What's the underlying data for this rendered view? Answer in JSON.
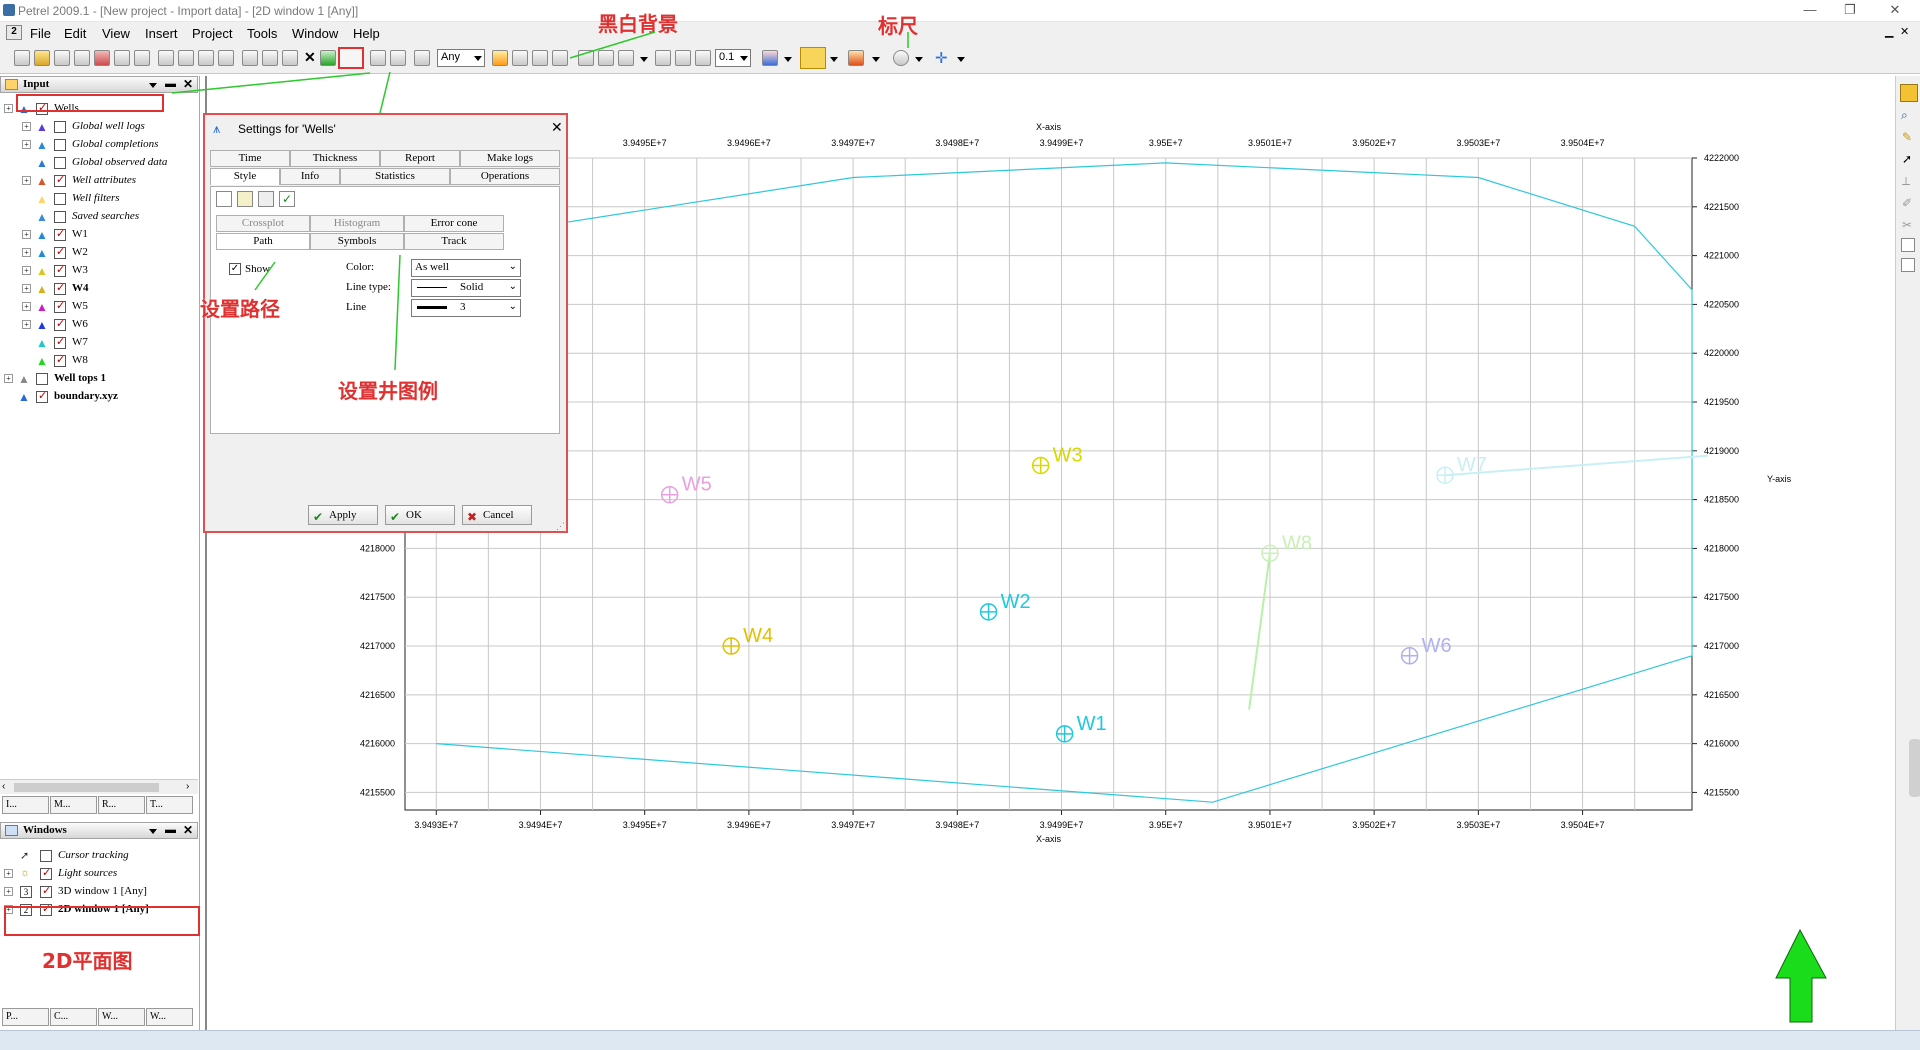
{
  "titlebar": {
    "title": "Petrel 2009.1 - [New project - Import data] - [2D window 1 [Any]]",
    "min_glyph": "—",
    "restore_glyph": "❐",
    "close_glyph": "✕"
  },
  "menubar": {
    "items": [
      "File",
      "Edit",
      "View",
      "Insert",
      "Project",
      "Tools",
      "Window",
      "Help"
    ]
  },
  "toolbar": {
    "combo_any": "Any",
    "combo_zoom": "0.1"
  },
  "input_pane": {
    "title": "Input",
    "tree": [
      {
        "label": "Wells",
        "checked": true
      },
      {
        "label": "Global well logs",
        "checked": false
      },
      {
        "label": "Global completions",
        "checked": false
      },
      {
        "label": "Global observed data",
        "checked": false
      },
      {
        "label": "Well attributes",
        "checked": true
      },
      {
        "label": "Well filters",
        "checked": false
      },
      {
        "label": "Saved searches",
        "checked": false
      },
      {
        "label": "W1",
        "checked": true
      },
      {
        "label": "W2",
        "checked": true
      },
      {
        "label": "W3",
        "checked": true
      },
      {
        "label": "W4",
        "checked": true
      },
      {
        "label": "W5",
        "checked": true
      },
      {
        "label": "W6",
        "checked": true
      },
      {
        "label": "W7",
        "checked": true
      },
      {
        "label": "W8",
        "checked": true
      },
      {
        "label": "Well tops 1",
        "checked": false
      },
      {
        "label": "boundary.xyz",
        "checked": true
      }
    ],
    "bottom_tabs": [
      "I...",
      "M...",
      "R...",
      "T..."
    ]
  },
  "windows_pane": {
    "title": "Windows",
    "tree": [
      {
        "label": "Cursor tracking",
        "checked": false
      },
      {
        "label": "Light sources",
        "checked": true
      },
      {
        "label": "3D window 1 [Any]",
        "checked": true,
        "number": "3"
      },
      {
        "label": "2D window 1 [Any]",
        "checked": true,
        "number": "2"
      }
    ],
    "bottom_tabs": [
      "P...",
      "C...",
      "W...",
      "W..."
    ]
  },
  "dialog": {
    "title": "Settings for 'Wells'",
    "tabs_row1": [
      "Time",
      "Thickness",
      "Report",
      "Make logs"
    ],
    "tabs_row2": [
      "Style",
      "Info",
      "Statistics",
      "Operations"
    ],
    "subtabs_row1": [
      "Crossplot",
      "Histogram",
      "Error cone"
    ],
    "subtabs_row2": [
      "Path",
      "Symbols",
      "Track"
    ],
    "show_label": "Show",
    "color_label": "Color:",
    "color_value": "As well",
    "linetype_label": "Line type:",
    "linetype_value": "Solid",
    "line_label": "Line",
    "line_value": "3",
    "buttons": {
      "apply": "Apply",
      "ok": "OK",
      "cancel": "Cancel"
    }
  },
  "annotations": {
    "black_white_bg": "黑白背景",
    "ruler": "标尺",
    "set_path": "设置路径",
    "set_well_legend": "设置井图例",
    "plan_2d": "2D平面图"
  },
  "chart_data": {
    "type": "scatter",
    "xlabel": "X-axis",
    "ylabel": "Y-axis",
    "x_ticks": [
      "3.9493E+7",
      "3.9494E+7",
      "3.9495E+7",
      "3.9496E+7",
      "3.9497E+7",
      "3.9498E+7",
      "3.9499E+7",
      "3.95E+7",
      "3.9501E+7",
      "3.9502E+7",
      "3.9503E+7",
      "3.9504E+7"
    ],
    "y_ticks": [
      "4222000",
      "4221500",
      "4221000",
      "4220500",
      "4220000",
      "4219500",
      "4219000",
      "4218500",
      "4218000",
      "4217500",
      "4217000",
      "4216500",
      "4216000",
      "4215500"
    ],
    "xlim": [
      39492700,
      39505050
    ],
    "ylim": [
      4215320,
      4222000
    ],
    "grid": true,
    "wells": [
      {
        "name": "W1",
        "x": 39499030,
        "y": 4216100,
        "color": "#1fc8dc"
      },
      {
        "name": "W2",
        "x": 39498300,
        "y": 4217350,
        "color": "#1fc8dc"
      },
      {
        "name": "W3",
        "x": 39498800,
        "y": 4218850,
        "color": "#d8d800"
      },
      {
        "name": "W4",
        "x": 39495830,
        "y": 4217000,
        "color": "#e0c000"
      },
      {
        "name": "W5",
        "x": 39495240,
        "y": 4218550,
        "color": "#e9a0e0"
      },
      {
        "name": "W6",
        "x": 39502340,
        "y": 4216900,
        "color": "#b0b0f0"
      },
      {
        "name": "W7",
        "x": 39502680,
        "y": 4218750,
        "color": "#c8f0f4"
      },
      {
        "name": "W8",
        "x": 39501000,
        "y": 4217950,
        "color": "#c8f0b8"
      }
    ],
    "well_paths": [
      {
        "name": "W7",
        "color": "#c8f0f4",
        "points": [
          [
            39502680,
            4218750
          ],
          [
            39505200,
            4218950
          ]
        ]
      },
      {
        "name": "W8",
        "color": "#b8f0a8",
        "points": [
          [
            39501000,
            4217950
          ],
          [
            39500800,
            4216350
          ]
        ]
      }
    ],
    "boundary": {
      "color": "#2ec8dc",
      "points": [
        [
          39493000,
          4216000
        ],
        [
          39500450,
          4215400
        ],
        [
          39505050,
          4216900
        ],
        [
          39505050,
          4220650
        ],
        [
          39504500,
          4221300
        ],
        [
          39503000,
          4221800
        ],
        [
          39500000,
          4221950
        ],
        [
          39497000,
          4221800
        ],
        [
          39494000,
          4221300
        ],
        [
          39493000,
          4220950
        ]
      ]
    }
  }
}
